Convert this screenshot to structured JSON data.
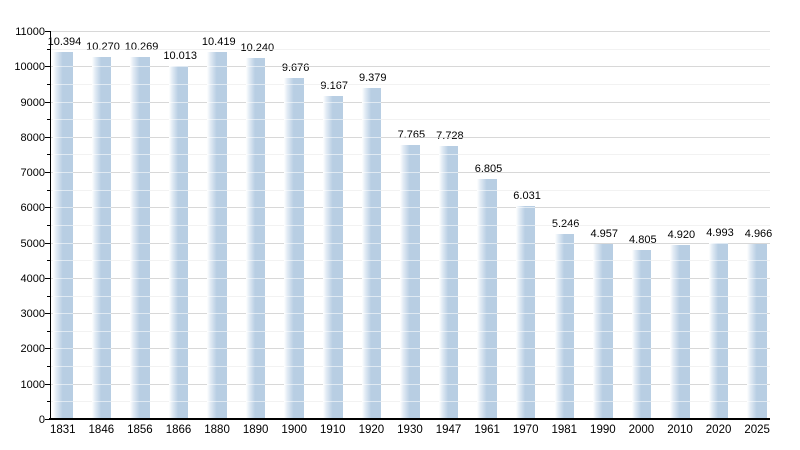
{
  "chart_data": {
    "type": "bar",
    "title": "",
    "xlabel": "",
    "ylabel": "",
    "categories": [
      1831,
      1846,
      1856,
      1866,
      1880,
      1890,
      1900,
      1910,
      1920,
      1930,
      1947,
      1961,
      1970,
      1981,
      1990,
      2000,
      2010,
      2020,
      2025
    ],
    "values": [
      10394,
      10270,
      10269,
      10013,
      10419,
      10240,
      9676,
      9167,
      9379,
      7765,
      7728,
      6805,
      6031,
      5246,
      4957,
      4805,
      4920,
      4993,
      4966
    ],
    "bar_value_labels": [
      "10.394",
      "10.270",
      "10.269",
      "10.013",
      "10.419",
      "10.240",
      "9.676",
      "9.167",
      "9.379",
      "7.765",
      "7.728",
      "6.805",
      "6.031",
      "5.246",
      "4.957",
      "4.805",
      "4.920",
      "4.993",
      "4.966"
    ],
    "ylim": [
      0,
      11000
    ],
    "y_major_step": 1000,
    "y_minor_step": 500,
    "y_tick_labels": [
      "0",
      "1000",
      "2000",
      "3000",
      "4000",
      "5000",
      "6000",
      "7000",
      "8000",
      "9000",
      "10000",
      "11000"
    ],
    "grid": "major and minor horizontal gridlines",
    "legend": "none",
    "colors": {
      "bar_fill": "#b8cee3",
      "bar_gradient_start": "#ffffff",
      "major_gridline": "#a8a8a8",
      "minor_gridline": "#e2e2e2",
      "axis": "#000000",
      "text": "#000000",
      "background": "#ffffff"
    }
  }
}
